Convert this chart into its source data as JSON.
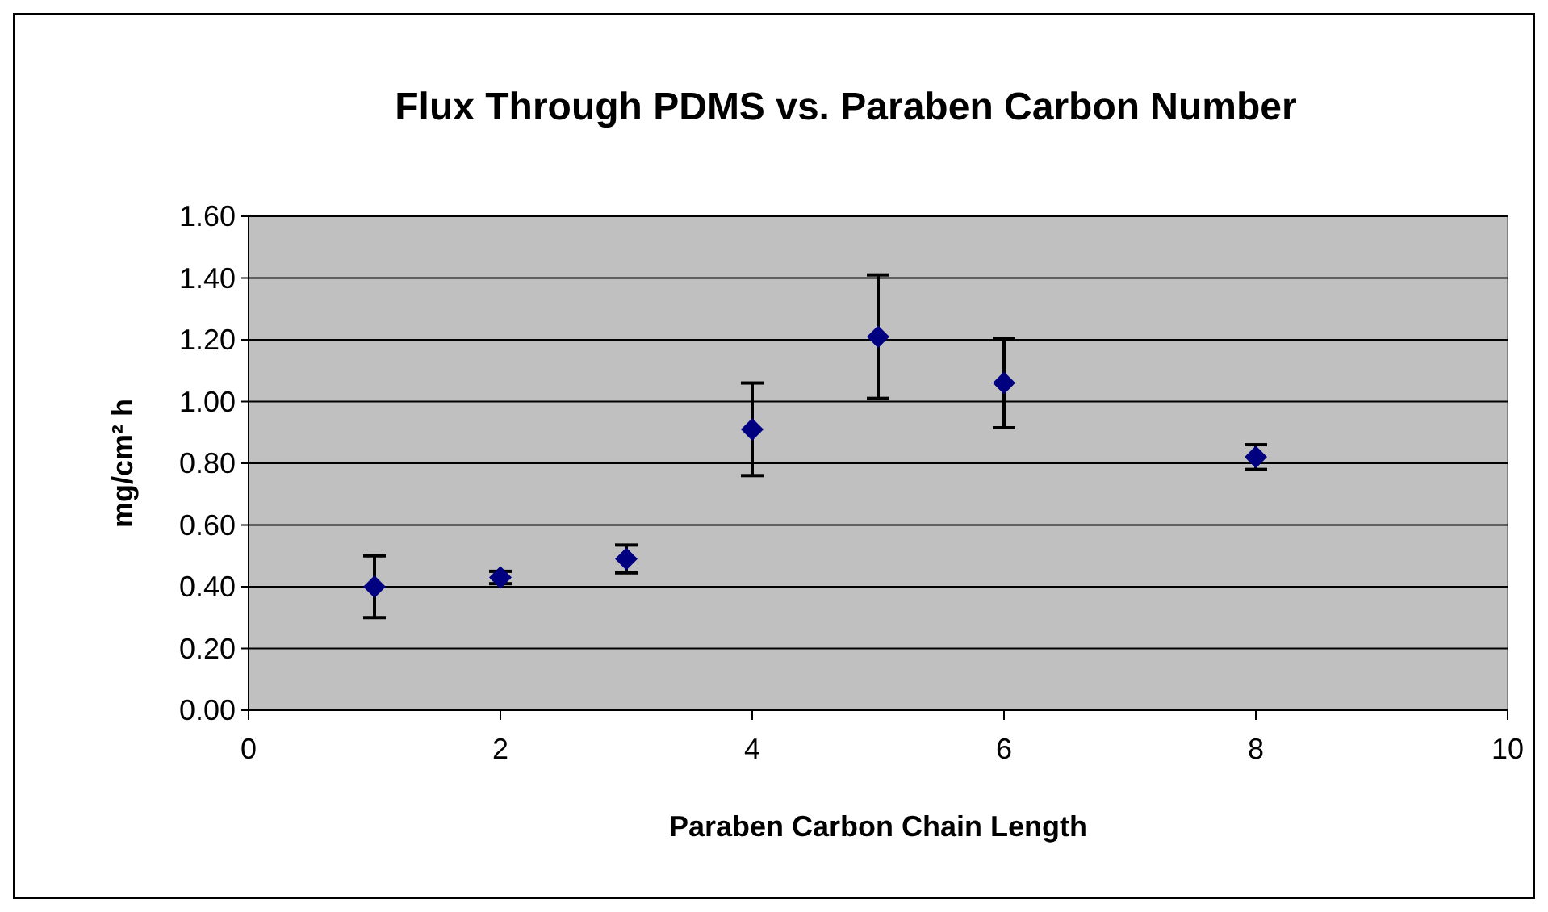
{
  "chart_data": {
    "type": "scatter",
    "title": "Flux Through PDMS vs. Paraben Carbon Number",
    "xlabel": "Paraben Carbon Chain Length",
    "ylabel": "mg/cm² h",
    "x": [
      1,
      2,
      3,
      4,
      5,
      6,
      8
    ],
    "series": [
      {
        "color": "#000080",
        "values": [
          0.4,
          0.43,
          0.49,
          0.91,
          1.21,
          1.06,
          0.82
        ],
        "errors": [
          0.1,
          0.02,
          0.045,
          0.15,
          0.2,
          0.145,
          0.04
        ]
      }
    ],
    "xlim": [
      0,
      10
    ],
    "xticks": [
      0,
      2,
      4,
      6,
      8,
      10
    ],
    "ylim": [
      0,
      1.6
    ],
    "yticks": [
      {
        "value": 0,
        "label": "0.00"
      },
      {
        "value": 0.2,
        "label": "0.20"
      },
      {
        "value": 0.4,
        "label": "0.40"
      },
      {
        "value": 0.6,
        "label": "0.60"
      },
      {
        "value": 0.8,
        "label": "0.80"
      },
      {
        "value": 1.0,
        "label": "1.00"
      },
      {
        "value": 1.2,
        "label": "1.20"
      },
      {
        "value": 1.4,
        "label": "1.40"
      },
      {
        "value": 1.6,
        "label": "1.60"
      }
    ],
    "grid": "y",
    "marker": "diamond"
  }
}
